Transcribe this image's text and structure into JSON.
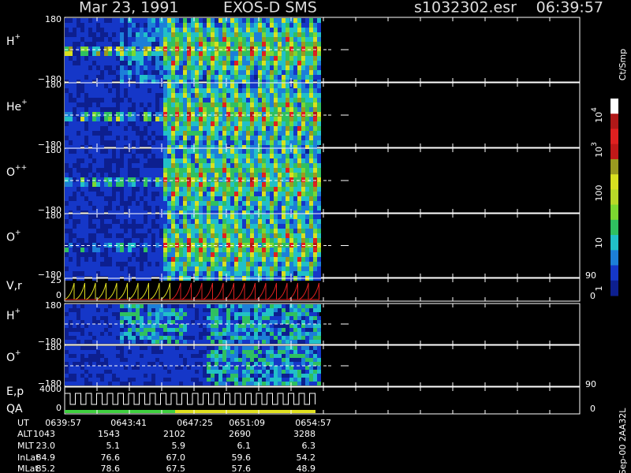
{
  "header": {
    "date": "Mar 23, 1991",
    "instrument": "EXOS-D SMS",
    "file": "s1032302.esr",
    "time": "06:39:57"
  },
  "panels": [
    {
      "label": {
        "base": "H",
        "sup": "+"
      },
      "top": "180",
      "bottom": "−180"
    },
    {
      "label": {
        "base": "He",
        "sup": "+"
      },
      "top": "180",
      "bottom": "−180"
    },
    {
      "label": {
        "base": "O",
        "sup": "++"
      },
      "top": "180",
      "bottom": "−180"
    },
    {
      "label": {
        "base": "O",
        "sup": "+"
      },
      "top": "180",
      "bottom": "−180"
    },
    {
      "label": {
        "base": "V,r"
      },
      "top": "25",
      "bottom": "0",
      "right_top": "90",
      "right_bottom": "0"
    },
    {
      "label": {
        "base": "H",
        "sup": "+"
      },
      "top": "180",
      "bottom": "−180"
    },
    {
      "label": {
        "base": "O",
        "sup": "+"
      },
      "top": "180",
      "bottom": "−180"
    },
    {
      "label": {
        "base": "E,p"
      },
      "label2": "QA",
      "top": "4000",
      "bottom": "0",
      "right_top": "90",
      "right_bottom": "0"
    }
  ],
  "colorbar": {
    "unit": "Ct/Smp",
    "labels": [
      {
        "base": "10",
        "sup": "4"
      },
      {
        "base": "10",
        "sup": "3"
      },
      {
        "base": "100"
      },
      {
        "base": "10"
      },
      {
        "base": "1"
      }
    ]
  },
  "table": {
    "rows": [
      {
        "name": "UT",
        "values": [
          "0639:57",
          "0643:41",
          "0647:25",
          "0651:09",
          "0654:57"
        ]
      },
      {
        "name": "ALT",
        "values": [
          "1043",
          "1543",
          "2102",
          "2690",
          "3288"
        ]
      },
      {
        "name": "MLT",
        "values": [
          "23.0",
          "5.1",
          "5.9",
          "6.1",
          "6.3"
        ]
      },
      {
        "name": "InLat",
        "values": [
          "84.9",
          "76.6",
          "67.0",
          "59.6",
          "54.2"
        ]
      },
      {
        "name": "MLat",
        "values": [
          "85.2",
          "78.6",
          "67.5",
          "57.6",
          "48.9"
        ]
      }
    ]
  },
  "footer": "Sep-00 2AA32L"
}
